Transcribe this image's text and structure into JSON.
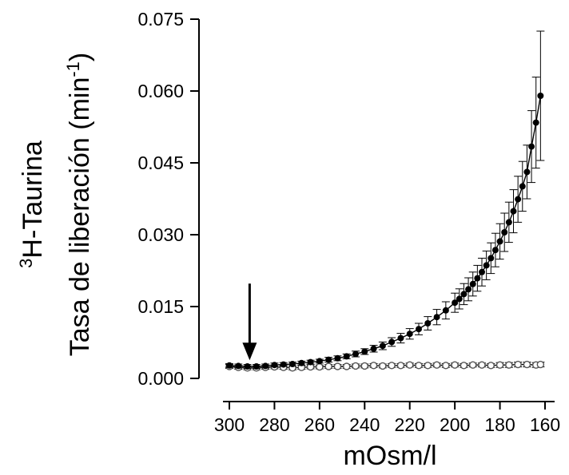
{
  "chart_data": {
    "type": "scatter",
    "title": "",
    "xlabel": "mOsm/l",
    "ylabel_line1": {
      "sup": "3",
      "text": "H-Taurina"
    },
    "ylabel_line2": {
      "text": "Tasa de liberación (min",
      "sup": "-1",
      "tail": ")"
    },
    "xlim": [
      304,
      157
    ],
    "ylim": [
      0.0,
      0.075
    ],
    "x_reversed": true,
    "x_ticks": [
      "300",
      "280",
      "260",
      "240",
      "220",
      "200",
      "180",
      "160"
    ],
    "y_ticks": [
      "0.000",
      "0.015",
      "0.030",
      "0.045",
      "0.060",
      "0.075"
    ],
    "grid": false,
    "annotation": {
      "type": "arrow",
      "x": 291,
      "y_from": 0.0198,
      "y_to": 0.0038
    },
    "series": [
      {
        "marker": "filled-circle",
        "connected": true,
        "x": [
          300,
          296,
          292,
          288,
          284,
          280,
          276,
          272,
          268,
          264,
          260,
          256,
          252,
          248,
          244,
          240,
          236,
          232,
          228,
          224,
          220,
          216,
          212,
          208,
          204,
          200,
          198,
          196,
          194,
          192,
          190,
          188,
          186,
          184,
          182,
          180,
          178,
          176,
          174,
          172,
          170,
          168,
          166,
          164,
          162
        ],
        "y": [
          0.0027,
          0.0026,
          0.0025,
          0.0025,
          0.0026,
          0.0028,
          0.0029,
          0.003,
          0.0032,
          0.0034,
          0.0036,
          0.0039,
          0.0042,
          0.0046,
          0.0051,
          0.0056,
          0.0062,
          0.0068,
          0.0076,
          0.0084,
          0.0093,
          0.0103,
          0.0115,
          0.0128,
          0.0142,
          0.0158,
          0.0166,
          0.0176,
          0.0186,
          0.0197,
          0.0209,
          0.0222,
          0.0236,
          0.0251,
          0.0268,
          0.0286,
          0.0305,
          0.0326,
          0.0349,
          0.0374,
          0.0401,
          0.0431,
          0.0484,
          0.0534,
          0.059
        ],
        "error": [
          0.0004,
          0.0004,
          0.0004,
          0.0004,
          0.0004,
          0.0004,
          0.0004,
          0.0004,
          0.0004,
          0.0004,
          0.0004,
          0.0005,
          0.0005,
          0.0005,
          0.0006,
          0.0006,
          0.0007,
          0.0008,
          0.0009,
          0.001,
          0.0011,
          0.0012,
          0.0014,
          0.0016,
          0.0018,
          0.002,
          0.0021,
          0.0022,
          0.0024,
          0.0025,
          0.0027,
          0.0029,
          0.003,
          0.0032,
          0.0035,
          0.0037,
          0.004,
          0.0042,
          0.0045,
          0.0048,
          0.0052,
          0.0056,
          0.0075,
          0.0095,
          0.0135
        ]
      },
      {
        "marker": "open-circle",
        "connected": true,
        "x": [
          300,
          296,
          292,
          288,
          284,
          280,
          276,
          272,
          268,
          264,
          260,
          256,
          252,
          248,
          244,
          240,
          236,
          232,
          228,
          224,
          220,
          216,
          212,
          208,
          204,
          200,
          196,
          192,
          188,
          184,
          180,
          176,
          172,
          168,
          164,
          162
        ],
        "y": [
          0.0025,
          0.0023,
          0.0022,
          0.0022,
          0.0023,
          0.0024,
          0.0023,
          0.0022,
          0.0023,
          0.0024,
          0.0024,
          0.0025,
          0.0025,
          0.0025,
          0.0026,
          0.0026,
          0.0027,
          0.0026,
          0.0027,
          0.0027,
          0.0028,
          0.0027,
          0.0027,
          0.0028,
          0.0027,
          0.0028,
          0.0027,
          0.0028,
          0.0028,
          0.0027,
          0.0028,
          0.0028,
          0.0029,
          0.0029,
          0.0028,
          0.0029
        ],
        "error": [
          0.0004,
          0.0004,
          0.0004,
          0.0004,
          0.0004,
          0.0004,
          0.0004,
          0.0004,
          0.0004,
          0.0004,
          0.0004,
          0.0004,
          0.0004,
          0.0004,
          0.0004,
          0.0004,
          0.0004,
          0.0004,
          0.0004,
          0.0004,
          0.0004,
          0.0004,
          0.0004,
          0.0004,
          0.0004,
          0.0004,
          0.0004,
          0.0004,
          0.0004,
          0.0004,
          0.0005,
          0.0005,
          0.0005,
          0.0005,
          0.0005,
          0.0005
        ]
      }
    ]
  }
}
